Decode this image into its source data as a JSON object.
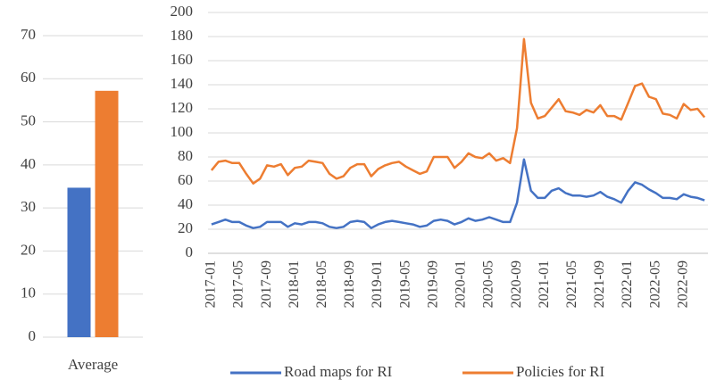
{
  "chart_data": [
    {
      "type": "bar",
      "categories": [
        "Average"
      ],
      "series": [
        {
          "color": "#4472c4",
          "values": [
            34.7
          ]
        },
        {
          "color": "#ed7d31",
          "values": [
            57.2
          ]
        }
      ],
      "ylim": [
        0,
        70
      ],
      "yticks": [
        0,
        10,
        20,
        30,
        40,
        50,
        60,
        70
      ],
      "grid": true
    },
    {
      "type": "line",
      "categories": [
        "2017-01",
        null,
        null,
        null,
        "2017-05",
        null,
        null,
        null,
        "2017-09",
        null,
        null,
        null,
        "2018-01",
        null,
        null,
        null,
        "2018-05",
        null,
        null,
        null,
        "2018-09",
        null,
        null,
        null,
        "2019-01",
        null,
        null,
        null,
        "2019-05",
        null,
        null,
        null,
        "2019-09",
        null,
        null,
        null,
        "2020-01",
        null,
        null,
        null,
        "2020-05",
        null,
        null,
        null,
        "2020-09",
        null,
        null,
        null,
        "2021-01",
        null,
        null,
        null,
        "2021-05",
        null,
        null,
        null,
        "2021-09",
        null,
        null,
        null,
        "2022-01",
        null,
        null,
        null,
        "2022-05",
        null,
        null,
        null,
        "2022-09",
        null,
        null,
        null
      ],
      "series": [
        {
          "name": "Road maps for RI",
          "color": "#4472c4",
          "values": [
            24,
            26,
            28,
            26,
            26,
            23,
            21,
            22,
            26,
            26,
            26,
            22,
            25,
            24,
            26,
            26,
            25,
            22,
            21,
            22,
            26,
            27,
            26,
            21,
            24,
            26,
            27,
            26,
            25,
            24,
            22,
            23,
            27,
            28,
            27,
            24,
            26,
            29,
            27,
            28,
            30,
            28,
            26,
            26,
            42,
            78,
            52,
            46,
            46,
            52,
            54,
            50,
            48,
            48,
            47,
            48,
            51,
            47,
            45,
            42,
            52,
            59,
            57,
            53,
            50,
            46,
            46,
            45,
            49,
            47,
            46,
            44
          ]
        },
        {
          "name": "Policies for RI",
          "color": "#ed7d31",
          "values": [
            69,
            76,
            77,
            75,
            75,
            66,
            58,
            62,
            73,
            72,
            74,
            65,
            71,
            72,
            77,
            76,
            75,
            66,
            62,
            64,
            71,
            74,
            74,
            64,
            70,
            73,
            75,
            76,
            72,
            69,
            66,
            68,
            80,
            80,
            80,
            71,
            76,
            83,
            80,
            79,
            83,
            77,
            79,
            75,
            104,
            178,
            125,
            112,
            114,
            121,
            128,
            118,
            117,
            115,
            119,
            117,
            123,
            114,
            114,
            111,
            125,
            139,
            141,
            130,
            128,
            116,
            115,
            112,
            124,
            119,
            120,
            113
          ]
        }
      ],
      "ylim": [
        0,
        200
      ],
      "yticks": [
        0,
        20,
        40,
        60,
        80,
        100,
        120,
        140,
        160,
        180,
        200
      ],
      "grid": true,
      "legend": "bottom"
    }
  ]
}
